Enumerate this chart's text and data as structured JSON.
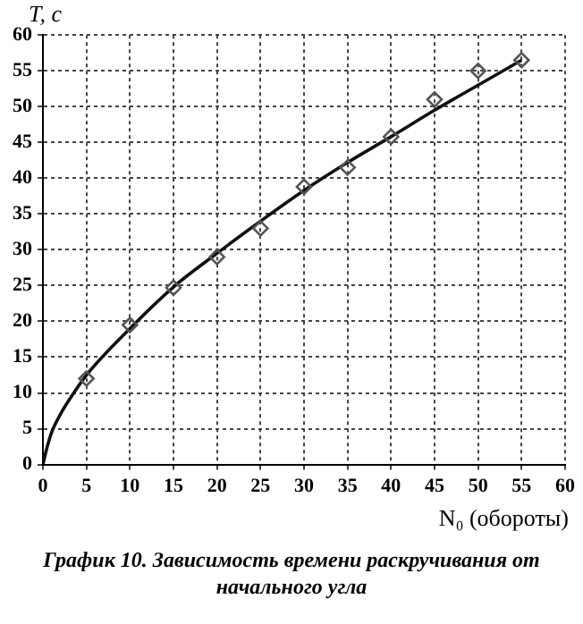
{
  "chart_data": {
    "type": "scatter",
    "title": "График 10. Зависимость времени раскручивания от начального угла",
    "xlabel": "N₀ (обороты)",
    "ylabel": "T, с",
    "xlim": [
      0,
      60
    ],
    "xticks": [
      0,
      5,
      10,
      15,
      20,
      25,
      30,
      35,
      40,
      45,
      50,
      55,
      60
    ],
    "ylim": [
      0,
      60
    ],
    "yticks": [
      0,
      5,
      10,
      15,
      20,
      25,
      30,
      35,
      40,
      45,
      50,
      55,
      60
    ],
    "grid": true,
    "series": [
      {
        "color": "#555555",
        "marker": "diamond",
        "x": [
          5,
          10,
          15,
          20,
          25,
          30,
          35,
          40,
          45,
          50,
          55
        ],
        "values": [
          12,
          19.5,
          24.7,
          29,
          33,
          38.8,
          41.5,
          45.8,
          51,
          55,
          56.5
        ]
      },
      {
        "type": "line",
        "color": "#111111",
        "line_style": "solid",
        "marker": "none",
        "x": [
          0,
          0.5,
          1,
          2,
          3,
          5,
          10,
          15,
          20,
          25,
          30,
          35,
          40,
          45,
          50,
          55
        ],
        "values": [
          0,
          2.5,
          4.5,
          7,
          9,
          12.5,
          19,
          24.8,
          29.5,
          34,
          38.3,
          42.2,
          45.8,
          49.5,
          53,
          56.5
        ]
      }
    ]
  }
}
